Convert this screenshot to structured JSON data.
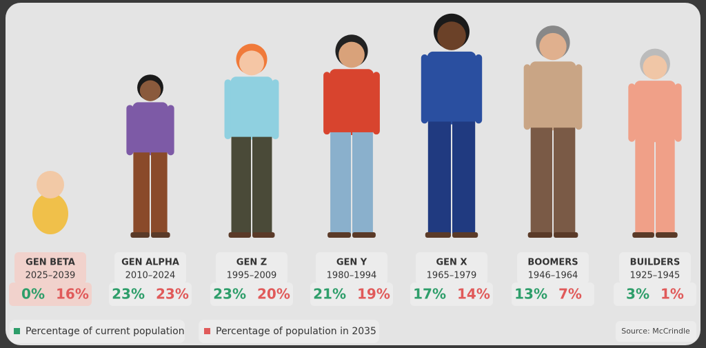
{
  "generations": [
    {
      "name": "GEN BETA",
      "years": "2025–2039",
      "current": "0%",
      "future": "16%"
    },
    {
      "name": "GEN ALPHA",
      "years": "2010–2024",
      "current": "23%",
      "future": "23%"
    },
    {
      "name": "GEN Z",
      "years": "1995–2009",
      "current": "23%",
      "future": "20%"
    },
    {
      "name": "GEN Y",
      "years": "1980–1994",
      "current": "21%",
      "future": "19%"
    },
    {
      "name": "GEN X",
      "years": "1965–1979",
      "current": "17%",
      "future": "14%"
    },
    {
      "name": "BOOMERS",
      "years": "1946–1964",
      "current": "13%",
      "future": "7%"
    },
    {
      "name": "BUILDERS",
      "years": "1925–1945",
      "current": "3%",
      "future": "1%"
    }
  ],
  "legend": {
    "current": "Percentage of current population",
    "future": "Percentage of population in 2035"
  },
  "source": "Source: McCrindle"
}
